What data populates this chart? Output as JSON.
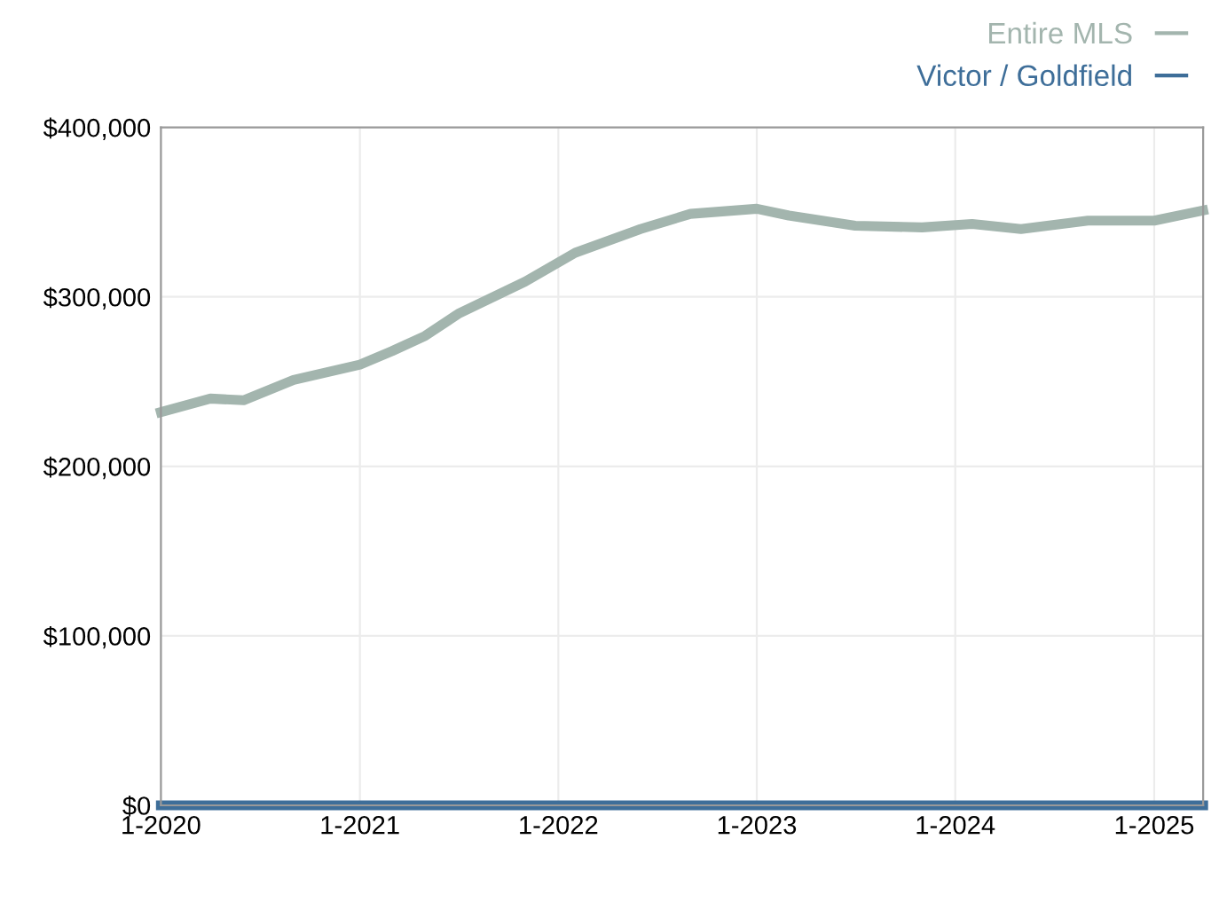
{
  "chart_data": {
    "type": "line",
    "x": [
      "2020-01",
      "2020-04",
      "2020-06",
      "2020-09",
      "2021-01",
      "2021-03",
      "2021-05",
      "2021-07",
      "2021-11",
      "2022-02",
      "2022-06",
      "2022-09",
      "2023-01",
      "2023-03",
      "2023-07",
      "2023-11",
      "2024-02",
      "2024-05",
      "2024-09",
      "2025-01",
      "2025-04"
    ],
    "series": [
      {
        "name": "Entire MLS",
        "color": "#a3b5ae",
        "values": [
          232000,
          240000,
          239000,
          251000,
          260000,
          268000,
          277000,
          290000,
          309000,
          326000,
          340000,
          349000,
          352000,
          348000,
          342000,
          341000,
          343000,
          340000,
          345000,
          345000,
          351000
        ]
      },
      {
        "name": "Victor / Goldfield",
        "color": "#3e6e99",
        "values": [
          0,
          0,
          0,
          0,
          0,
          0,
          0,
          0,
          0,
          0,
          0,
          0,
          0,
          0,
          0,
          0,
          0,
          0,
          0,
          0,
          0
        ]
      }
    ],
    "xlim": [
      "2020-01",
      "2025-04"
    ],
    "xticks": [
      {
        "value": "2020-01",
        "label": "1-2020"
      },
      {
        "value": "2021-01",
        "label": "1-2021"
      },
      {
        "value": "2022-01",
        "label": "1-2022"
      },
      {
        "value": "2023-01",
        "label": "1-2023"
      },
      {
        "value": "2024-01",
        "label": "1-2024"
      },
      {
        "value": "2025-01",
        "label": "1-2025"
      }
    ],
    "ylim": [
      0,
      400000
    ],
    "yticks": [
      {
        "value": 0,
        "label": "$0"
      },
      {
        "value": 100000,
        "label": "$100,000"
      },
      {
        "value": 200000,
        "label": "$200,000"
      },
      {
        "value": 300000,
        "label": "$300,000"
      },
      {
        "value": 400000,
        "label": "$400,000"
      }
    ],
    "grid": true,
    "legend": "top right",
    "line_style": "solid",
    "marker": "none"
  }
}
